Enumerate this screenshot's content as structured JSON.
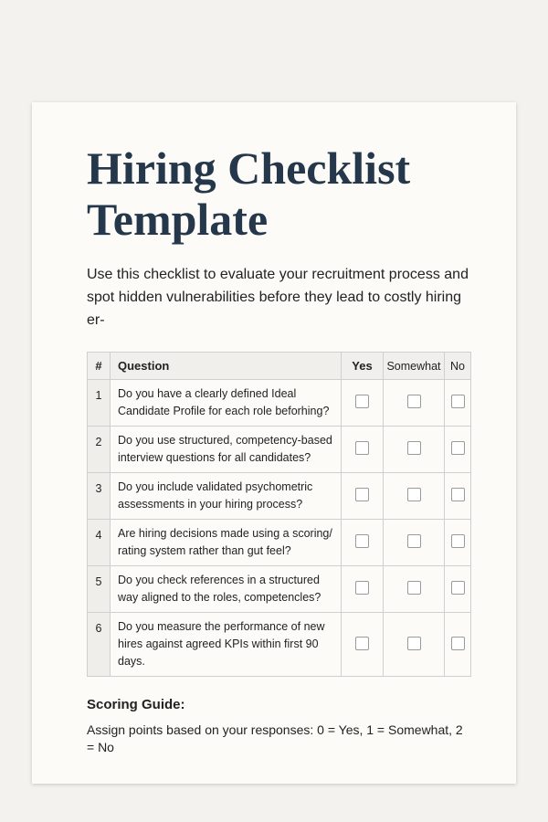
{
  "title": "Hiring Checklist Template",
  "intro_lines": [
    "Use this checklist to evaluate your recruitment process and",
    "spot hidden vulnerabilities before they lead to costly hiring er-"
  ],
  "table": {
    "headers": {
      "num": "#",
      "question": "Question",
      "yes": "Yes",
      "somewhat": "Somewhat",
      "no": "No"
    },
    "rows": [
      {
        "num": "1",
        "question": "Do you have a clearly defined Ideal Candidate Profile for each role beforhing?"
      },
      {
        "num": "2",
        "question": "Do you use structured, competency-based interview questions for all candidates?"
      },
      {
        "num": "3",
        "question": "Do you include validated psychometric assessments in your hiring process?"
      },
      {
        "num": "4",
        "question": "Are hiring decisions made using a scoring/ rating system rather than gut feel?"
      },
      {
        "num": "5",
        "question": "Do you check references in a structured way aligned to the roles, competencles?"
      },
      {
        "num": "6",
        "question": "Do you measure the performance of new hires against agreed KPIs within first 90 days."
      }
    ]
  },
  "scoring": {
    "heading": "Scoring Guide:",
    "text": "Assign points based on your responses: 0 = Yes, 1 = Somewhat, 2 = No"
  }
}
